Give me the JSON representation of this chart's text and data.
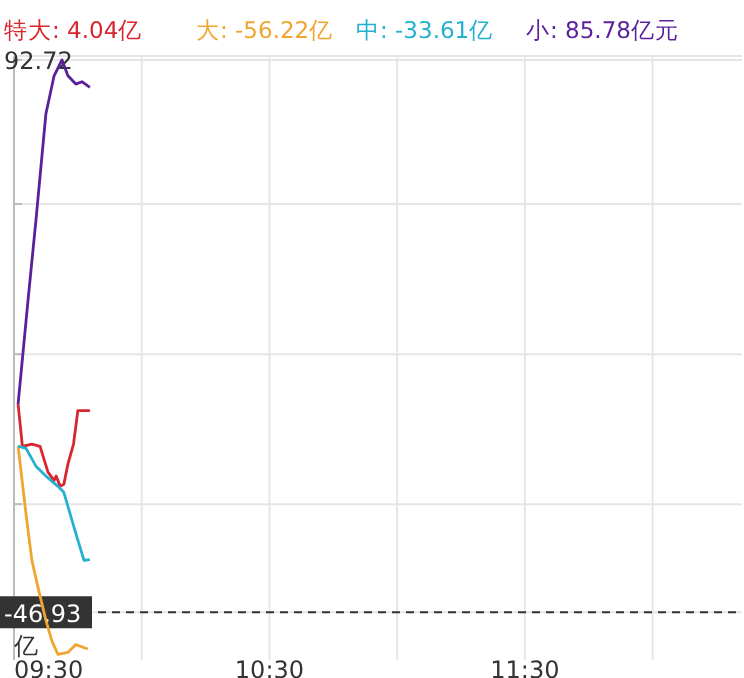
{
  "chart_data": {
    "type": "line",
    "ylabel": "亿",
    "legend": "top",
    "grid": true,
    "marker": "none",
    "line_style": "solid",
    "xlim": [
      9.5,
      12.35
    ],
    "xticks": [
      {
        "value": 9.5,
        "label": "09:30"
      },
      {
        "value": 10,
        "label": null
      },
      {
        "value": 10.5,
        "label": "10:30"
      },
      {
        "value": 11,
        "label": null
      },
      {
        "value": 11.5,
        "label": "11:30"
      },
      {
        "value": 12,
        "label": null
      }
    ],
    "ylim": [
      -59,
      93.7
    ],
    "yticks": [
      92.72,
      {
        "value": 56.3,
        "label": null
      },
      {
        "value": 18.3,
        "label": null
      },
      {
        "value": -19.6,
        "label": null
      },
      -46.93
    ],
    "ref_lines": [
      {
        "axis": "y",
        "value": -46.93,
        "color": "#333333",
        "line_style": "dashed"
      }
    ],
    "series": [
      {
        "name": "特大: 4.04亿",
        "color": "#d7262e",
        "x": [
          9.516,
          9.533,
          9.57,
          9.602,
          9.633,
          9.657,
          9.665,
          9.681,
          9.695,
          9.711,
          9.733,
          9.75,
          9.797
        ],
        "values": [
          5.7,
          -5.0,
          -4.4,
          -5.0,
          -11.5,
          -13.6,
          -12.5,
          -15.1,
          -14.6,
          -9.5,
          -4.4,
          4.04,
          4.04
        ]
      },
      {
        "name": "大: -56.22亿",
        "color": "#f0a531",
        "x": [
          9.516,
          9.547,
          9.57,
          9.593,
          9.625,
          9.648,
          9.672,
          9.711,
          9.742,
          9.789
        ],
        "values": [
          -4.95,
          -22.1,
          -33.8,
          -40.4,
          -49.0,
          -54.1,
          -57.6,
          -57.1,
          -55.1,
          -56.22
        ]
      },
      {
        "name": "中: -33.61亿",
        "color": "#25b0cf",
        "x": [
          9.516,
          9.547,
          9.586,
          9.625,
          9.672,
          9.695,
          9.727,
          9.75,
          9.774,
          9.797
        ],
        "values": [
          -4.95,
          -5.5,
          -10.0,
          -12.5,
          -15.1,
          -16.6,
          -23.7,
          -28.7,
          -33.8,
          -33.61
        ]
      },
      {
        "name": "小: 85.78亿元",
        "color": "#5a1f9c",
        "x": [
          9.516,
          9.555,
          9.586,
          9.625,
          9.657,
          9.688,
          9.711,
          9.742,
          9.766,
          9.797
        ],
        "values": [
          5.7,
          32.0,
          52.2,
          79.1,
          88.7,
          92.72,
          88.7,
          86.6,
          87.2,
          85.78
        ]
      }
    ]
  }
}
